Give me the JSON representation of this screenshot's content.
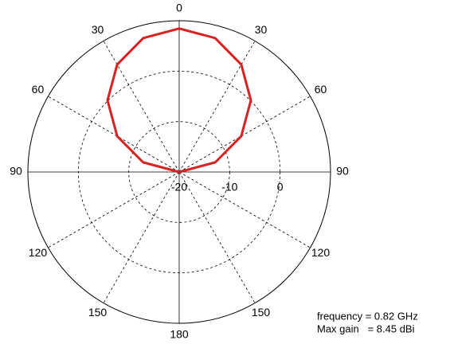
{
  "chart_data": {
    "type": "polar",
    "theta": [
      -90,
      -75,
      -60,
      -45,
      -30,
      -15,
      0,
      15,
      30,
      45,
      60,
      75,
      90
    ],
    "values": [
      -20,
      -12.6,
      -5.8,
      0.1,
      4.6,
      7.5,
      8.45,
      7.5,
      4.6,
      0.1,
      -5.8,
      -12.6,
      -20
    ],
    "color": "#d92121",
    "rlim": [
      -20,
      10
    ],
    "rticks": [
      -20,
      -10,
      0
    ],
    "thetaticks": [
      0,
      30,
      60,
      90,
      120,
      150,
      180
    ],
    "annotations": [
      "frequency = 0.82 GHz",
      "Max gain   = 8.45 dBi"
    ]
  }
}
